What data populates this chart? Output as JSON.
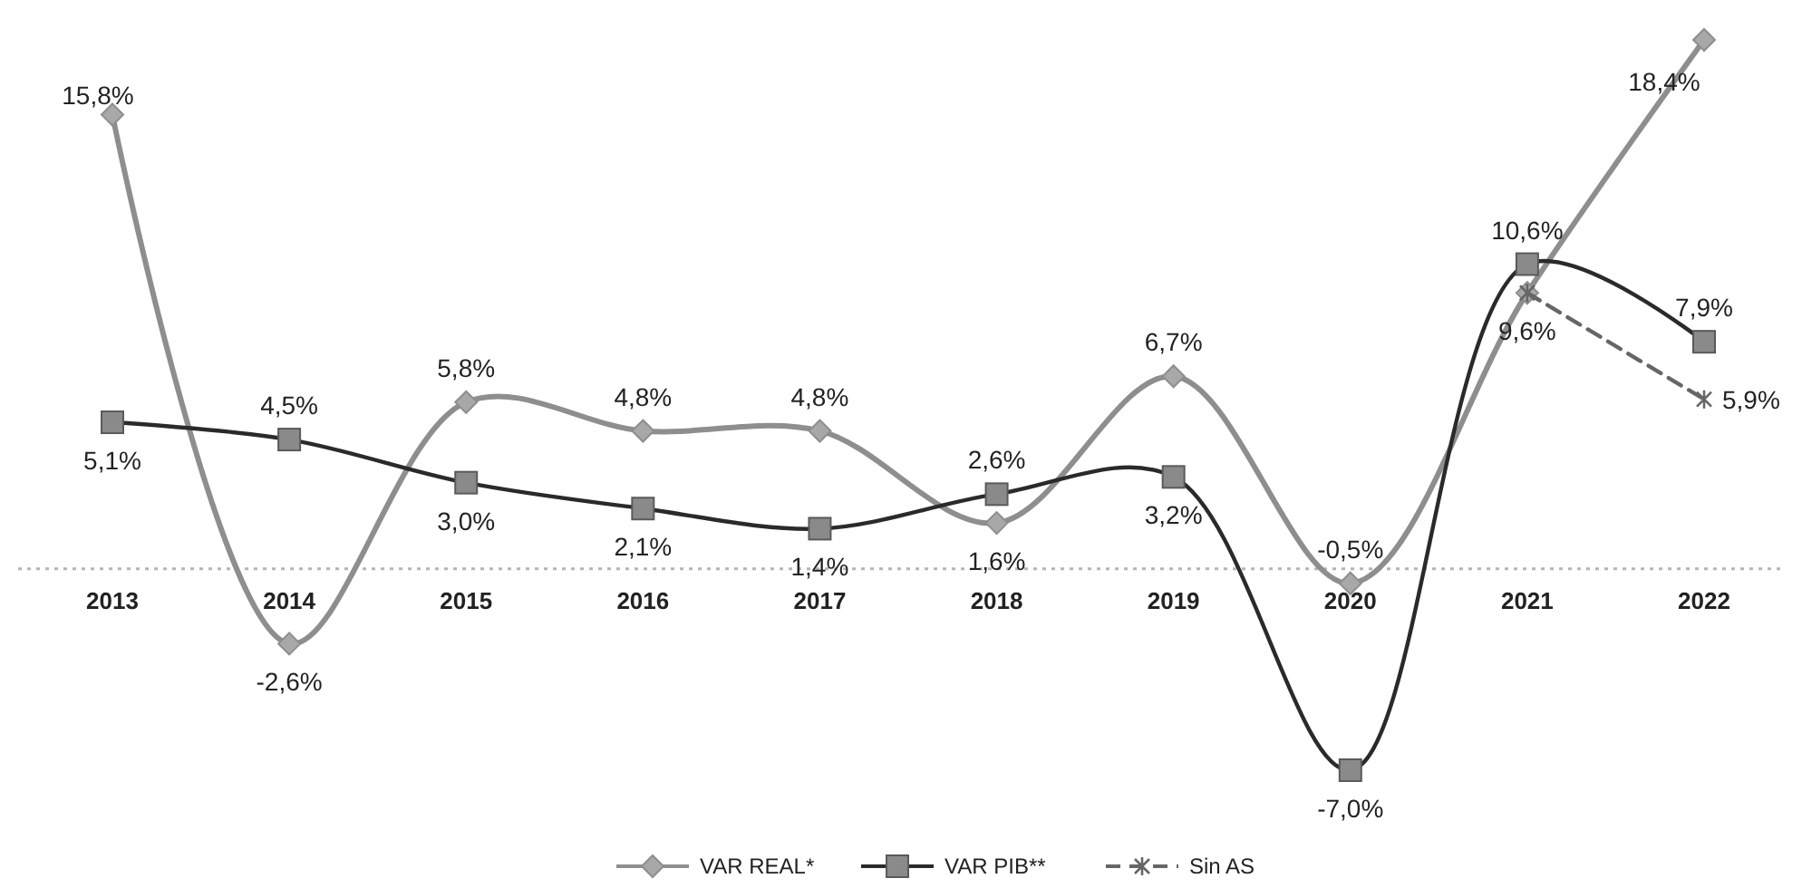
{
  "chart_data": {
    "type": "line",
    "ref_lines": [
      {
        "axis": "y",
        "value": 0,
        "color": "#b5b5b5",
        "line_style": "dotted"
      }
    ],
    "categories": [
      "2013",
      "2014",
      "2015",
      "2016",
      "2017",
      "2018",
      "2019",
      "2020",
      "2021",
      "2022"
    ],
    "series": [
      {
        "name": "VAR REAL*",
        "color": "#8e8e8e",
        "marker": "diamond",
        "line_style": "solid",
        "values": [
          15.8,
          -2.6,
          5.8,
          4.8,
          4.8,
          1.6,
          6.7,
          -0.5,
          9.6,
          18.4
        ],
        "value_labels": [
          "15,8%",
          "-2,6%",
          "5,8%",
          "4,8%",
          "4,8%",
          "1,6%",
          "6,7%",
          "-0,5%",
          "9,6%",
          "18,4%"
        ]
      },
      {
        "name": "VAR PIB**",
        "color": "#2a2a2a",
        "marker": "square",
        "line_style": "solid",
        "values": [
          5.1,
          4.5,
          3.0,
          2.1,
          1.4,
          2.6,
          3.2,
          -7.0,
          10.6,
          7.9
        ],
        "value_labels": [
          "5,1%",
          "4,5%",
          "3,0%",
          "2,1%",
          "1,4%",
          "2,6%",
          "3,2%",
          "-7,0%",
          "10,6%",
          "7,9%"
        ]
      },
      {
        "name": "Sin AS",
        "color": "#666666",
        "marker": "cross",
        "line_style": "dashed",
        "values": [
          null,
          null,
          null,
          null,
          null,
          null,
          null,
          null,
          9.6,
          5.9
        ],
        "value_labels": [
          null,
          null,
          null,
          null,
          null,
          null,
          null,
          null,
          null,
          "5,9%"
        ]
      }
    ],
    "legend": "bottom"
  }
}
